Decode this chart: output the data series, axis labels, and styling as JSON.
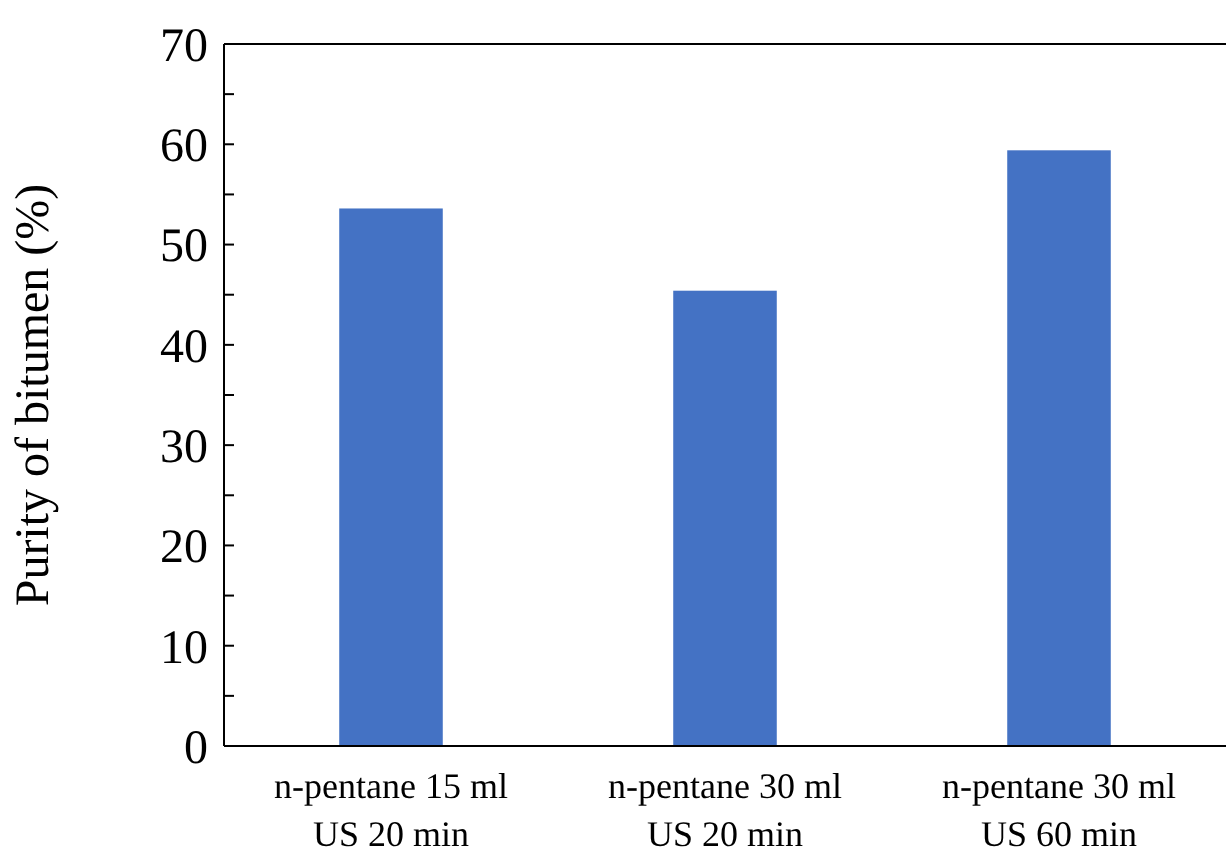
{
  "chart_data": {
    "type": "bar",
    "ylabel": "Purity of bitumen (%)",
    "categories": [
      "n-pentane 15 ml\nUS 20 min",
      "n-pentane 30 ml\nUS 20 min",
      "n-pentane 30 ml\nUS 60 min"
    ],
    "values": [
      53.6,
      45.4,
      59.4
    ],
    "color": "#4472c4",
    "ylim": [
      0,
      70
    ],
    "yticks": [
      0,
      {
        "value": 5,
        "label": null
      },
      10,
      {
        "value": 15,
        "label": null
      },
      20,
      {
        "value": 25,
        "label": null
      },
      30,
      {
        "value": 35,
        "label": null
      },
      40,
      {
        "value": 45,
        "label": null
      },
      50,
      {
        "value": 55,
        "label": null
      },
      60,
      {
        "value": 65,
        "label": null
      },
      70
    ],
    "grid": false
  }
}
